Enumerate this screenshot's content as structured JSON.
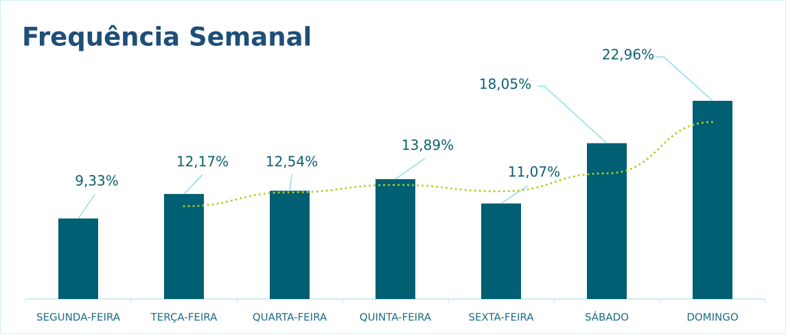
{
  "chart_data": {
    "type": "bar",
    "title": "Frequência Semanal",
    "categories": [
      "SEGUNDA-FEIRA",
      "TERÇA-FEIRA",
      "QUARTA-FEIRA",
      "QUINTA-FEIRA",
      "SEXTA-FEIRA",
      "SÁBADO",
      "DOMINGO"
    ],
    "values": [
      9.33,
      12.17,
      12.54,
      13.89,
      11.07,
      18.05,
      22.96
    ],
    "value_labels": [
      "9,33%",
      "12,17%",
      "12,54%",
      "13,89%",
      "11,07%",
      "18,05%",
      "22,96%"
    ],
    "color": "#005f73",
    "trendline": {
      "type": "moving-average",
      "period": 2,
      "color": "#b5cc18"
    }
  }
}
